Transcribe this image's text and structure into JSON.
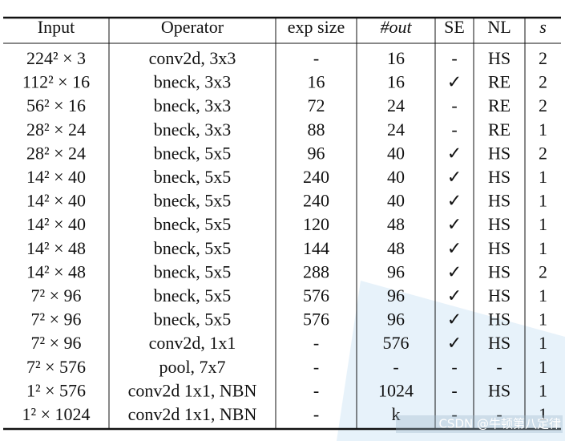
{
  "table": {
    "header": [
      "Input",
      "Operator",
      "exp size",
      "#out",
      "SE",
      "NL",
      "s"
    ],
    "rows": [
      [
        "224² × 3",
        "conv2d, 3x3",
        "-",
        "16",
        "-",
        "HS",
        "2"
      ],
      [
        "112² × 16",
        "bneck, 3x3",
        "16",
        "16",
        "✓",
        "RE",
        "2"
      ],
      [
        "56² × 16",
        "bneck, 3x3",
        "72",
        "24",
        "-",
        "RE",
        "2"
      ],
      [
        "28² × 24",
        "bneck, 3x3",
        "88",
        "24",
        "-",
        "RE",
        "1"
      ],
      [
        "28² × 24",
        "bneck, 5x5",
        "96",
        "40",
        "✓",
        "HS",
        "2"
      ],
      [
        "14² × 40",
        "bneck, 5x5",
        "240",
        "40",
        "✓",
        "HS",
        "1"
      ],
      [
        "14² × 40",
        "bneck, 5x5",
        "240",
        "40",
        "✓",
        "HS",
        "1"
      ],
      [
        "14² × 40",
        "bneck, 5x5",
        "120",
        "48",
        "✓",
        "HS",
        "1"
      ],
      [
        "14² × 48",
        "bneck, 5x5",
        "144",
        "48",
        "✓",
        "HS",
        "1"
      ],
      [
        "14² × 48",
        "bneck, 5x5",
        "288",
        "96",
        "✓",
        "HS",
        "2"
      ],
      [
        "7² × 96",
        "bneck, 5x5",
        "576",
        "96",
        "✓",
        "HS",
        "1"
      ],
      [
        "7² × 96",
        "bneck, 5x5",
        "576",
        "96",
        "✓",
        "HS",
        "1"
      ],
      [
        "7² × 96",
        "conv2d, 1x1",
        "-",
        "576",
        "✓",
        "HS",
        "1"
      ],
      [
        "7² × 576",
        "pool, 7x7",
        "-",
        "-",
        "-",
        "-",
        "1"
      ],
      [
        "1² × 576",
        "conv2d 1x1, NBN",
        "-",
        "1024",
        "-",
        "HS",
        "1"
      ],
      [
        "1² × 1024",
        "conv2d 1x1, NBN",
        "-",
        "k",
        "-",
        "-",
        "1"
      ]
    ]
  },
  "watermark": "CSDN @牛顿第八定律"
}
